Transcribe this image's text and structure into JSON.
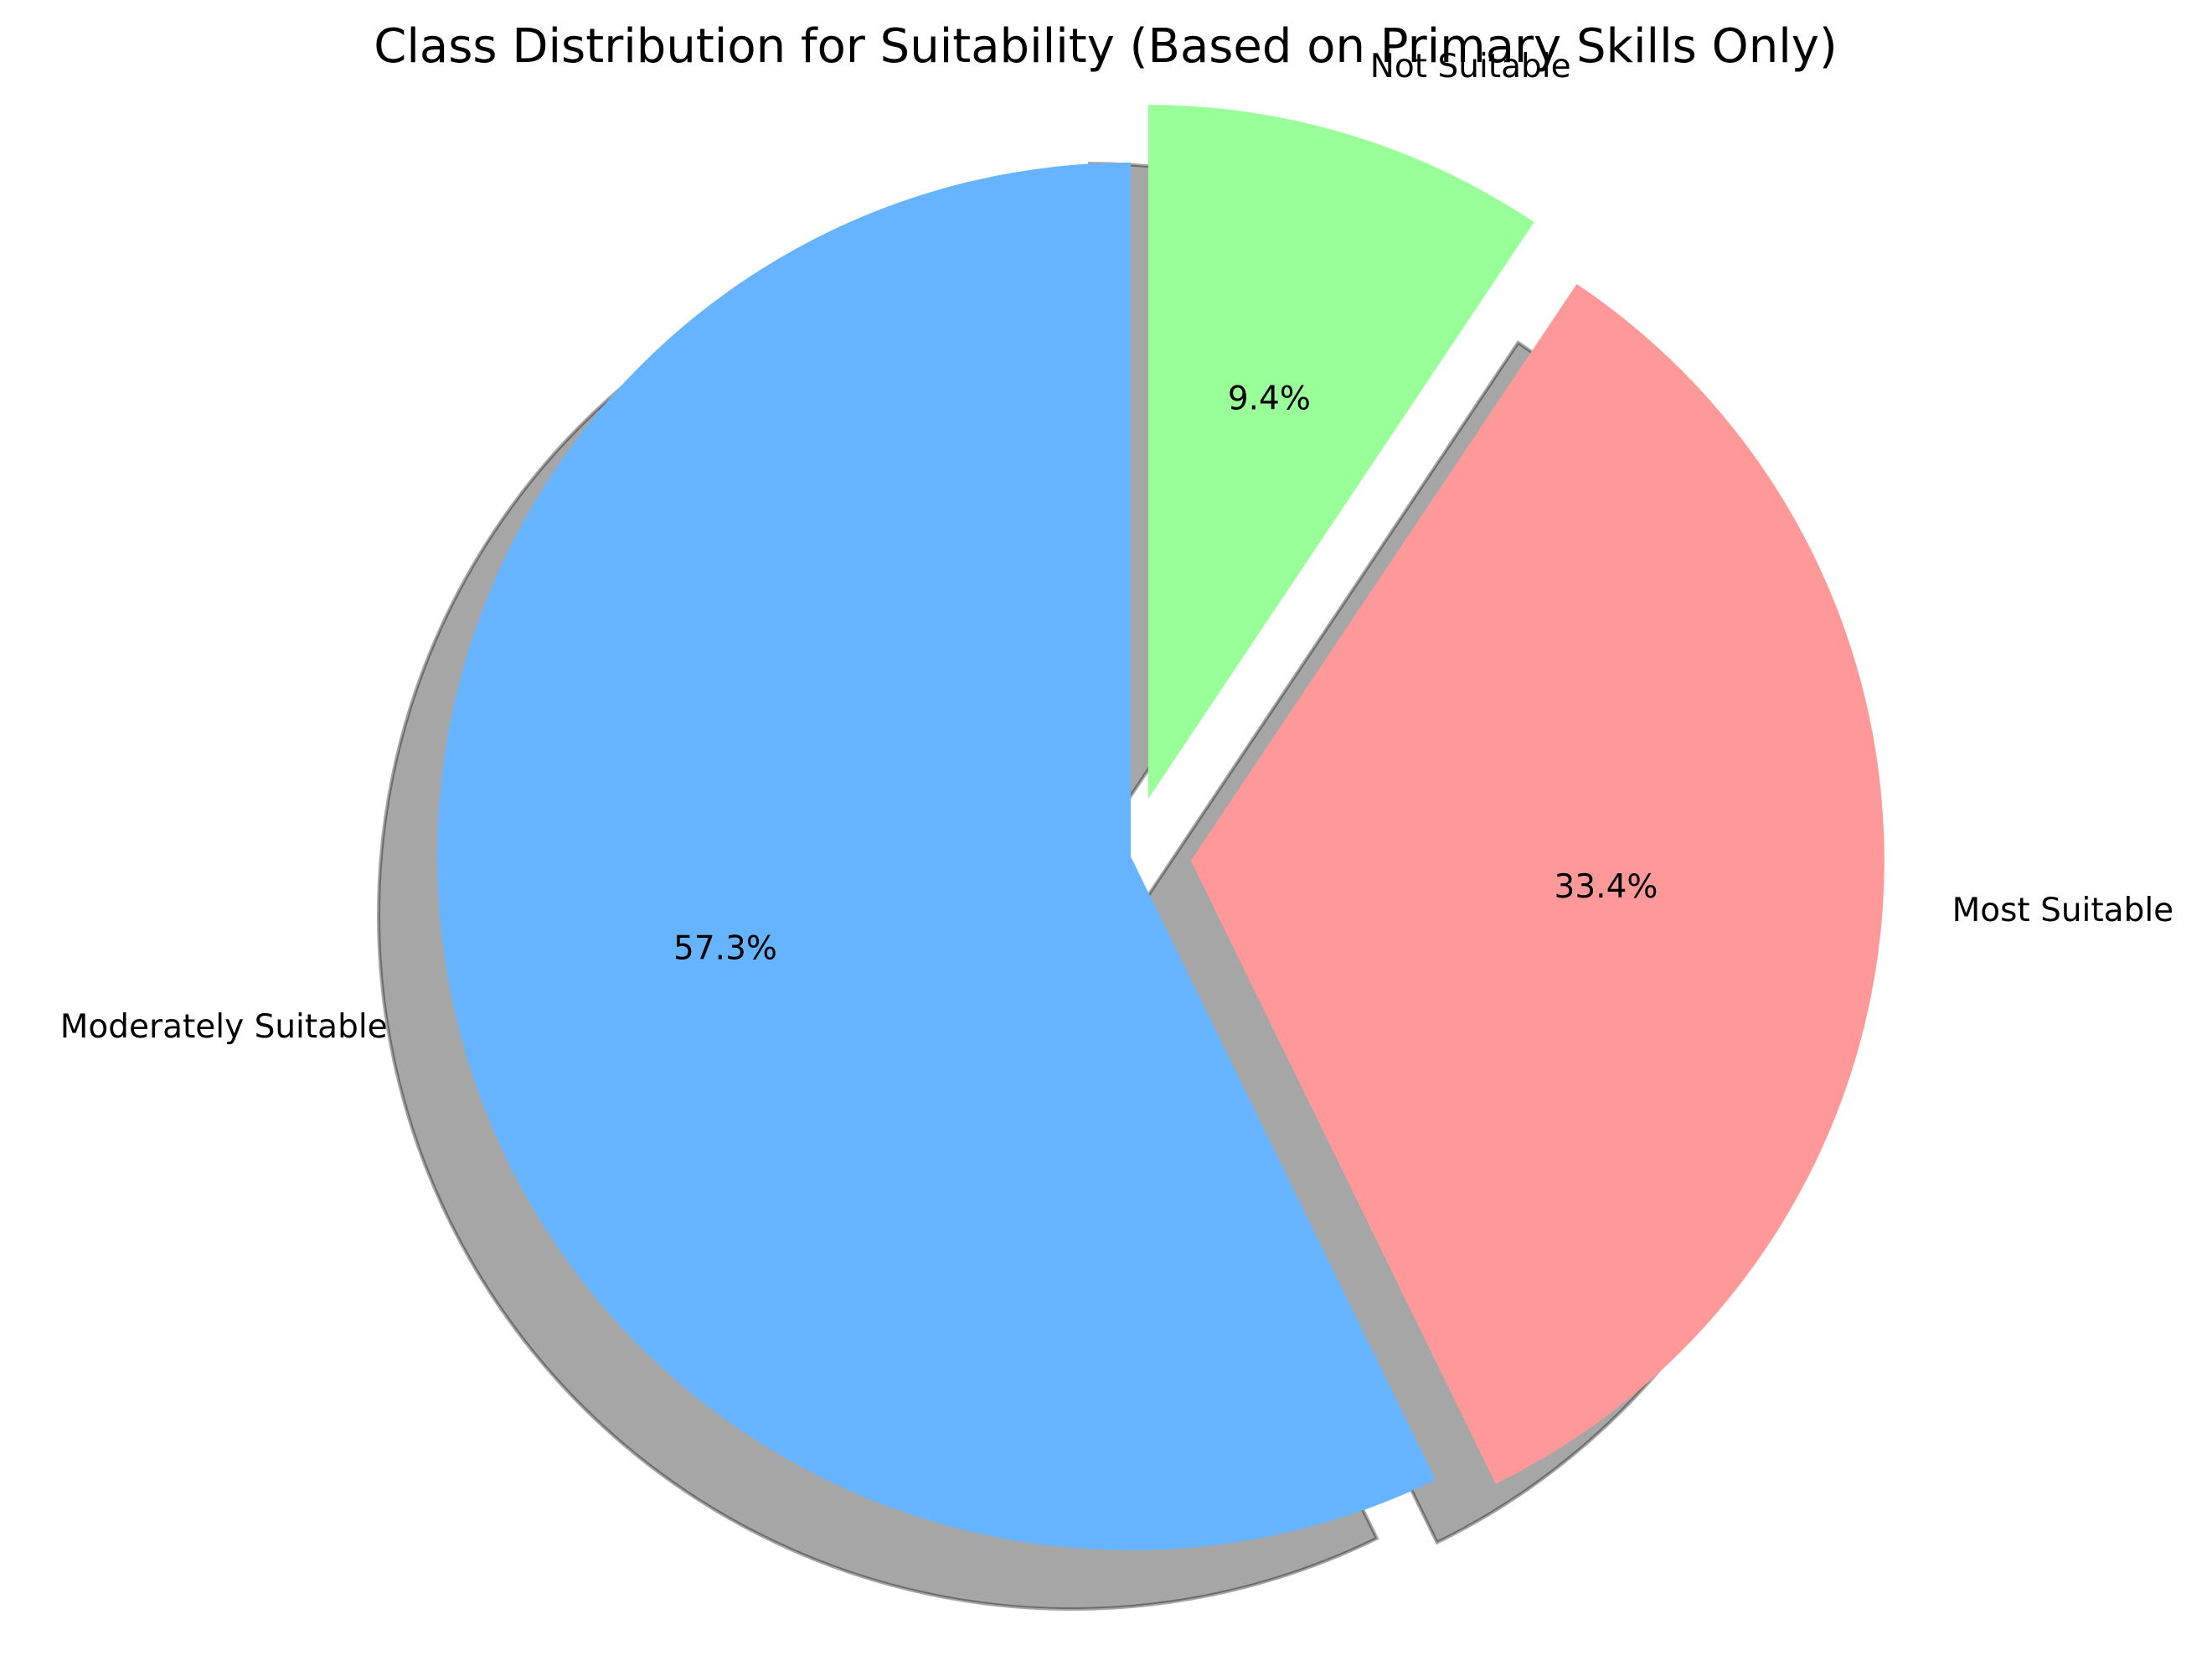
{
  "chart_data": {
    "type": "pie",
    "title": "Class Distribution for Suitability (Based on Primary Skills Only)",
    "slices": [
      {
        "label": "Moderately Suitable",
        "value": 57.3,
        "pct_label": "57.3%",
        "color": "#66b3ff",
        "exploded": false
      },
      {
        "label": "Most Suitable",
        "value": 33.4,
        "pct_label": "33.4%",
        "color": "#ff9999",
        "exploded": true
      },
      {
        "label": "Not Suitable",
        "value": 9.4,
        "pct_label": "9.4%",
        "color": "#99ff99",
        "exploded": true
      }
    ],
    "start_angle_deg": 90,
    "direction": "counterclockwise",
    "shadow": true,
    "legend": "none"
  }
}
